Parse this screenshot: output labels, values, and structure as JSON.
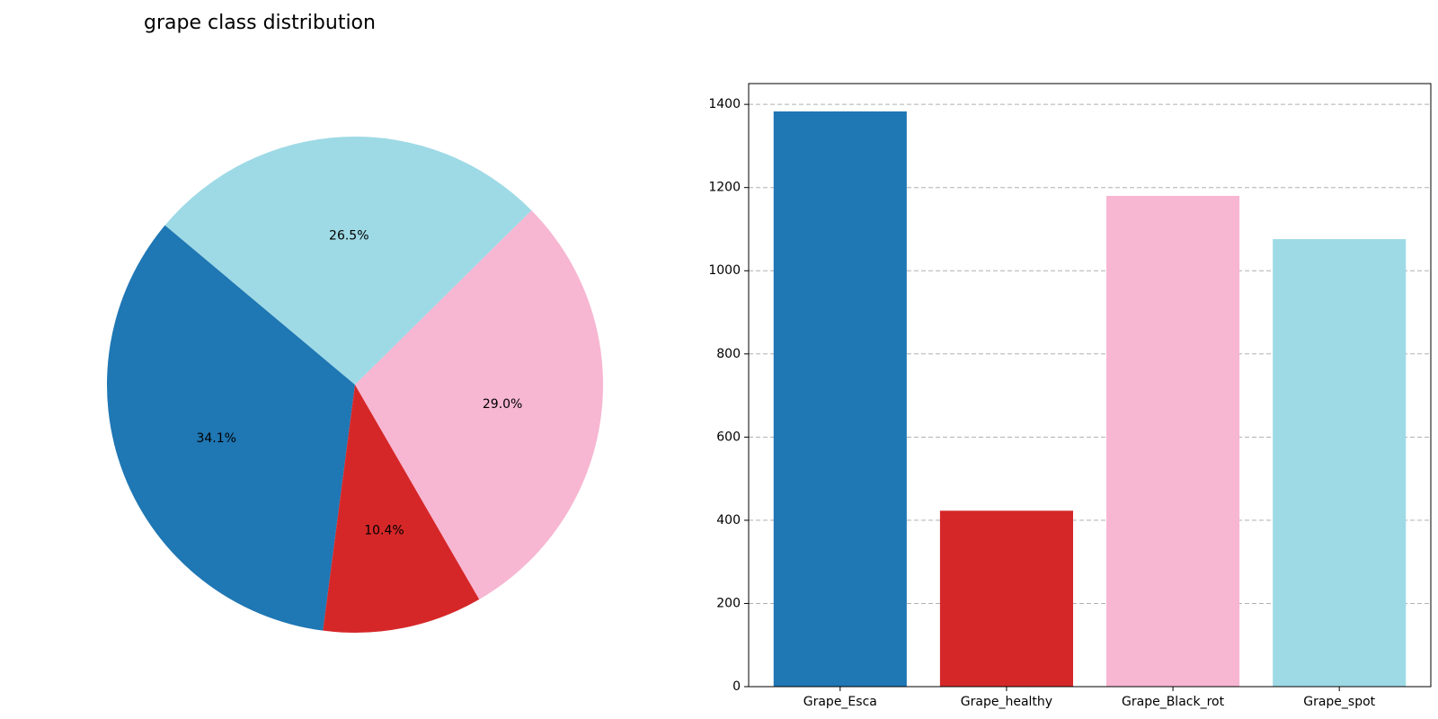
{
  "title": "grape class distribution",
  "chart_data": [
    {
      "type": "pie",
      "title": "grape class distribution",
      "categories": [
        "Grape_Esca",
        "Grape_healthy",
        "Grape_Black_rot",
        "Grape_spot"
      ],
      "values": [
        1383,
        423,
        1180,
        1076
      ],
      "percent_labels": [
        "34.1%",
        "10.4%",
        "29.0%",
        "26.5%"
      ],
      "colors": [
        "#1f77b4",
        "#d62728",
        "#f7b6d2",
        "#9edae5"
      ],
      "start_angle_deg": 140,
      "direction": "counterclockwise"
    },
    {
      "type": "bar",
      "categories": [
        "Grape_Esca",
        "Grape_healthy",
        "Grape_Black_rot",
        "Grape_spot"
      ],
      "values": [
        1383,
        423,
        1180,
        1076
      ],
      "colors": [
        "#1f77b4",
        "#d62728",
        "#f7b6d2",
        "#9edae5"
      ],
      "ylim": [
        0,
        1450
      ],
      "yticks": [
        0,
        200,
        400,
        600,
        800,
        1000,
        1200,
        1400
      ],
      "grid": "y-dashed",
      "xlabel": "",
      "ylabel": ""
    }
  ]
}
